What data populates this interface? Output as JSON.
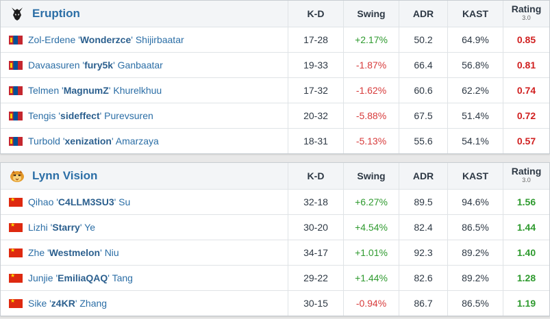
{
  "columns": {
    "kd": "K-D",
    "swing": "Swing",
    "adr": "ADR",
    "kast": "KAST",
    "rating": "Rating",
    "rating_version": "3.0"
  },
  "teams": [
    {
      "name": "Eruption",
      "logo_icon": "skull-helmet-icon",
      "players": [
        {
          "first": "Zol-Erdene",
          "nick": "Wonderzce",
          "last": "Shijirbaatar",
          "flag": "mn",
          "kd": "17-28",
          "swing": "+2.17%",
          "adr": "50.2",
          "kast": "64.9%",
          "rating": "0.85"
        },
        {
          "first": "Davaasuren",
          "nick": "fury5k",
          "last": "Ganbaatar",
          "flag": "mn",
          "kd": "19-33",
          "swing": "-1.87%",
          "adr": "66.4",
          "kast": "56.8%",
          "rating": "0.81"
        },
        {
          "first": "Telmen",
          "nick": "MagnumZ",
          "last": "Khurelkhuu",
          "flag": "mn",
          "kd": "17-32",
          "swing": "-1.62%",
          "adr": "60.6",
          "kast": "62.2%",
          "rating": "0.74"
        },
        {
          "first": "Tengis",
          "nick": "sideffect",
          "last": "Purevsuren",
          "flag": "mn",
          "kd": "20-32",
          "swing": "-5.88%",
          "adr": "67.5",
          "kast": "51.4%",
          "rating": "0.72"
        },
        {
          "first": "Turbold",
          "nick": "xenization",
          "last": "Amarzaya",
          "flag": "mn",
          "kd": "18-31",
          "swing": "-5.13%",
          "adr": "55.6",
          "kast": "54.1%",
          "rating": "0.57"
        }
      ]
    },
    {
      "name": "Lynn Vision",
      "logo_icon": "tiger-icon",
      "players": [
        {
          "first": "Qihao",
          "nick": "C4LLM3SU3",
          "last": "Su",
          "flag": "cn",
          "kd": "32-18",
          "swing": "+6.27%",
          "adr": "89.5",
          "kast": "94.6%",
          "rating": "1.56"
        },
        {
          "first": "Lizhi",
          "nick": "Starry",
          "last": "Ye",
          "flag": "cn",
          "kd": "30-20",
          "swing": "+4.54%",
          "adr": "82.4",
          "kast": "86.5%",
          "rating": "1.44"
        },
        {
          "first": "Zhe",
          "nick": "Westmelon",
          "last": "Niu",
          "flag": "cn",
          "kd": "34-17",
          "swing": "+1.01%",
          "adr": "92.3",
          "kast": "89.2%",
          "rating": "1.40"
        },
        {
          "first": "Junjie",
          "nick": "EmiliaQAQ",
          "last": "Tang",
          "flag": "cn",
          "kd": "29-22",
          "swing": "+1.44%",
          "adr": "82.6",
          "kast": "89.2%",
          "rating": "1.28"
        },
        {
          "first": "Sike",
          "nick": "z4KR",
          "last": "Zhang",
          "flag": "cn",
          "kd": "30-15",
          "swing": "-0.94%",
          "adr": "86.7",
          "kast": "86.5%",
          "rating": "1.19"
        }
      ]
    }
  ]
}
